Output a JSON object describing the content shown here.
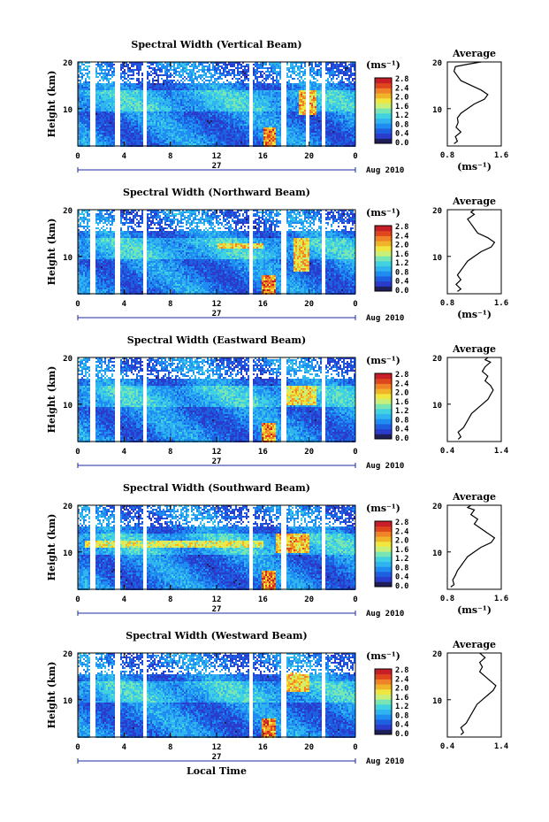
{
  "chart_data": [
    {
      "type": "heatmap",
      "title": "Spectral Width (Vertical Beam)",
      "xlabel": "",
      "ylabel": "Height (km)",
      "date_label": "27",
      "period_label": "Aug 2010",
      "x_ticks": [
        "0",
        "4",
        "8",
        "12",
        "16",
        "20",
        "0"
      ],
      "y_ticks": [
        "20",
        "10"
      ],
      "colorbar": {
        "unit": "(ms⁻¹)",
        "ticks": [
          "2.8",
          "2.4",
          "2.0",
          "1.6",
          "1.2",
          "0.8",
          "0.4",
          "0.0"
        ],
        "range": [
          0,
          2.8
        ]
      },
      "data_gaps_hours": [
        [
          1.0,
          1.4
        ],
        [
          3.2,
          3.6
        ],
        [
          5.6,
          5.9
        ],
        [
          14.8,
          15.1
        ],
        [
          17.5,
          17.9
        ],
        [
          19.7,
          19.9
        ],
        [
          21.0,
          21.3
        ]
      ],
      "features": [
        {
          "x": [
            16.0,
            17.0
          ],
          "y": [
            2,
            6
          ],
          "level": 2.6
        },
        {
          "x": [
            19.0,
            20.5
          ],
          "y": [
            9,
            14
          ],
          "level": 2.3
        }
      ],
      "profile": {
        "title": "Average",
        "xlabel": "(ms⁻¹)",
        "x_ticks": [
          "0.8",
          "1.6"
        ],
        "y_ticks": [
          "20",
          "10"
        ],
        "xlim": [
          0.8,
          1.6
        ],
        "ylim": [
          2,
          20
        ],
        "x": [
          0.9,
          0.95,
          0.92,
          1.0,
          0.93,
          0.96,
          0.95,
          1.0,
          1.1,
          1.2,
          1.35,
          1.4,
          1.3,
          1.15,
          1.0,
          0.95,
          0.9,
          0.92,
          1.1,
          1.3
        ],
        "y": [
          2.5,
          3,
          4,
          5,
          6,
          7,
          8,
          9,
          10,
          11,
          12,
          13,
          14,
          15,
          16,
          17,
          18,
          19,
          19.5,
          20
        ]
      }
    },
    {
      "type": "heatmap",
      "title": "Spectral Width (Northward Beam)",
      "xlabel": "",
      "ylabel": "Height (km)",
      "date_label": "27",
      "period_label": "Aug 2010",
      "x_ticks": [
        "0",
        "4",
        "8",
        "12",
        "16",
        "20",
        "0"
      ],
      "y_ticks": [
        "20",
        "10"
      ],
      "colorbar": {
        "unit": "(ms⁻¹)",
        "ticks": [
          "2.8",
          "2.4",
          "2.0",
          "1.6",
          "1.2",
          "0.8",
          "0.4",
          "0.0"
        ],
        "range": [
          0,
          2.8
        ]
      },
      "data_gaps_hours": [
        [
          1.0,
          1.4
        ],
        [
          3.2,
          3.6
        ],
        [
          5.6,
          5.9
        ],
        [
          14.8,
          15.1
        ],
        [
          17.5,
          17.9
        ],
        [
          21.0,
          21.3
        ]
      ],
      "features": [
        {
          "x": [
            15.8,
            17.0
          ],
          "y": [
            2,
            6
          ],
          "level": 2.6
        },
        {
          "x": [
            12.0,
            16.0
          ],
          "y": [
            12,
            13
          ],
          "level": 2.2
        },
        {
          "x": [
            18.5,
            20.0
          ],
          "y": [
            7,
            14
          ],
          "level": 2.2
        }
      ],
      "profile": {
        "title": "Average",
        "xlabel": "(ms⁻¹)",
        "x_ticks": [
          "0.8",
          "1.6"
        ],
        "y_ticks": [
          "20",
          "10"
        ],
        "xlim": [
          0.8,
          1.6
        ],
        "ylim": [
          2,
          20
        ],
        "x": [
          0.95,
          1.0,
          0.93,
          1.0,
          0.95,
          1.0,
          1.05,
          1.1,
          1.2,
          1.3,
          1.45,
          1.5,
          1.4,
          1.25,
          1.2,
          1.15,
          1.1,
          1.2,
          1.15,
          1.2
        ],
        "y": [
          2.5,
          3,
          4,
          5,
          6,
          7,
          8,
          9,
          10,
          11,
          12,
          13,
          14,
          15,
          16,
          17,
          18,
          19,
          19.5,
          20
        ]
      }
    },
    {
      "type": "heatmap",
      "title": "Spectral Width (Eastward Beam)",
      "xlabel": "",
      "ylabel": "Height (km)",
      "date_label": "27",
      "period_label": "Aug 2010",
      "x_ticks": [
        "0",
        "4",
        "8",
        "12",
        "16",
        "20",
        "0"
      ],
      "y_ticks": [
        "20",
        "10"
      ],
      "colorbar": {
        "unit": "(ms⁻¹)",
        "ticks": [
          "2.8",
          "2.4",
          "2.0",
          "1.6",
          "1.2",
          "0.8",
          "0.4",
          "0.0"
        ],
        "range": [
          0,
          2.8
        ]
      },
      "data_gaps_hours": [
        [
          1.0,
          1.4
        ],
        [
          3.2,
          3.6
        ],
        [
          5.6,
          5.9
        ],
        [
          14.8,
          15.1
        ],
        [
          17.5,
          17.9
        ],
        [
          21.0,
          21.3
        ]
      ],
      "features": [
        {
          "x": [
            15.8,
            17.0
          ],
          "y": [
            2,
            6
          ],
          "level": 2.5
        },
        {
          "x": [
            18.0,
            20.5
          ],
          "y": [
            10,
            14
          ],
          "level": 2.1
        }
      ],
      "profile": {
        "title": "Average",
        "xlabel": "",
        "x_ticks": [
          "0.4",
          "1.4"
        ],
        "y_ticks": [
          "20",
          "10"
        ],
        "xlim": [
          0.4,
          1.4
        ],
        "ylim": [
          2,
          20
        ],
        "x": [
          0.6,
          0.65,
          0.6,
          0.7,
          0.75,
          0.8,
          0.85,
          0.95,
          1.05,
          1.15,
          1.2,
          1.25,
          1.2,
          1.1,
          1.15,
          1.05,
          1.1,
          1.2,
          1.1,
          1.15
        ],
        "y": [
          2.5,
          3,
          4,
          5,
          6,
          7,
          8,
          9,
          10,
          11,
          12,
          13,
          14,
          15,
          16,
          17,
          18,
          19,
          19.5,
          20
        ]
      }
    },
    {
      "type": "heatmap",
      "title": "Spectral Width (Southward Beam)",
      "xlabel": "",
      "ylabel": "Height (km)",
      "date_label": "27",
      "period_label": "Aug 2010",
      "x_ticks": [
        "0",
        "4",
        "8",
        "12",
        "16",
        "20",
        "0"
      ],
      "y_ticks": [
        "20",
        "10"
      ],
      "colorbar": {
        "unit": "(ms⁻¹)",
        "ticks": [
          "2.8",
          "2.4",
          "2.0",
          "1.6",
          "1.2",
          "0.8",
          "0.4",
          "0.0"
        ],
        "range": [
          0,
          2.8
        ]
      },
      "data_gaps_hours": [
        [
          1.0,
          1.4
        ],
        [
          3.2,
          3.6
        ],
        [
          5.6,
          5.9
        ],
        [
          14.8,
          15.1
        ],
        [
          17.5,
          17.9
        ],
        [
          21.0,
          21.3
        ]
      ],
      "features": [
        {
          "x": [
            15.8,
            17.0
          ],
          "y": [
            2,
            6
          ],
          "level": 2.6
        },
        {
          "x": [
            0.5,
            16.0
          ],
          "y": [
            11,
            12.5
          ],
          "level": 2.0
        },
        {
          "x": [
            17.0,
            20.0
          ],
          "y": [
            10,
            14
          ],
          "level": 2.3
        }
      ],
      "profile": {
        "title": "Average",
        "xlabel": "(ms⁻¹)",
        "x_ticks": [
          "0.8",
          "1.6"
        ],
        "y_ticks": [
          "20",
          "10"
        ],
        "xlim": [
          0.8,
          1.6
        ],
        "ylim": [
          2,
          20
        ],
        "x": [
          0.85,
          0.9,
          0.88,
          0.92,
          0.95,
          1.0,
          1.05,
          1.1,
          1.2,
          1.3,
          1.45,
          1.5,
          1.4,
          1.3,
          1.2,
          1.25,
          1.15,
          1.2,
          1.1,
          1.15
        ],
        "y": [
          2.5,
          3,
          4,
          5,
          6,
          7,
          8,
          9,
          10,
          11,
          12,
          13,
          14,
          15,
          16,
          17,
          18,
          19,
          19.5,
          20
        ]
      }
    },
    {
      "type": "heatmap",
      "title": "Spectral Width (Westward Beam)",
      "xlabel": "Local Time",
      "ylabel": "Height (km)",
      "date_label": "27",
      "period_label": "Aug 2010",
      "x_ticks": [
        "0",
        "4",
        "8",
        "12",
        "16",
        "20",
        "0"
      ],
      "y_ticks": [
        "20",
        "10"
      ],
      "colorbar": {
        "unit": "(ms⁻¹)",
        "ticks": [
          "2.8",
          "2.4",
          "2.0",
          "1.6",
          "1.2",
          "0.8",
          "0.4",
          "0.0"
        ],
        "range": [
          0,
          2.8
        ]
      },
      "data_gaps_hours": [
        [
          1.0,
          1.4
        ],
        [
          3.2,
          3.6
        ],
        [
          5.6,
          5.9
        ],
        [
          14.8,
          15.1
        ],
        [
          17.5,
          17.9
        ],
        [
          21.0,
          21.3
        ]
      ],
      "features": [
        {
          "x": [
            15.8,
            17.0
          ],
          "y": [
            2,
            6
          ],
          "level": 2.6
        },
        {
          "x": [
            18.0,
            20.0
          ],
          "y": [
            12,
            16
          ],
          "level": 2.2
        }
      ],
      "profile": {
        "title": "Average",
        "xlabel": "",
        "x_ticks": [
          "0.4",
          "1.4"
        ],
        "y_ticks": [
          "20",
          "10"
        ],
        "xlim": [
          0.4,
          1.4
        ],
        "ylim": [
          2,
          20
        ],
        "x": [
          0.65,
          0.7,
          0.65,
          0.75,
          0.8,
          0.85,
          0.9,
          0.95,
          1.05,
          1.15,
          1.25,
          1.3,
          1.2,
          1.1,
          1.0,
          1.05,
          1.0,
          1.1,
          1.05,
          1.0
        ],
        "y": [
          2.5,
          3,
          4,
          5,
          6,
          7,
          8,
          9,
          10,
          11,
          12,
          13,
          14,
          15,
          16,
          17,
          18,
          19,
          19.5,
          20
        ]
      }
    }
  ],
  "colors": {
    "colormap": [
      "#1e1e5a",
      "#2a3ccc",
      "#1e5ee0",
      "#1e8cf0",
      "#30b4f0",
      "#40d2e0",
      "#78e6b4",
      "#c8f078",
      "#f0e640",
      "#f0b428",
      "#f08228",
      "#e0461e",
      "#c81e28"
    ],
    "axis": "#000000",
    "gap": "#ffffff"
  }
}
